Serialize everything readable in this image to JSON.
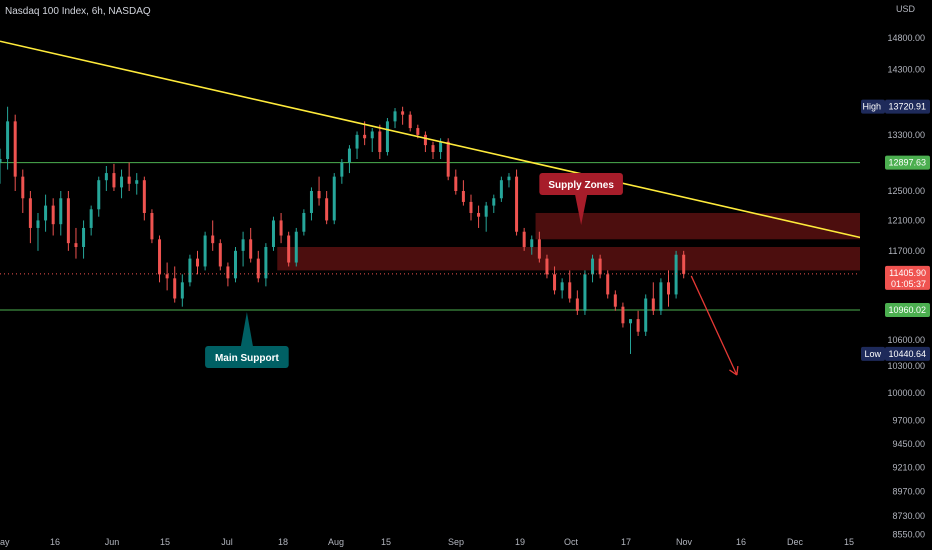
{
  "chart_data": {
    "type": "candlestick",
    "title": "Nasdaq 100 Index, 6h, NASDAQ",
    "currency": "USD",
    "y_axis": {
      "ticks": [
        8550.0,
        8730.0,
        8970.0,
        9210.0,
        9450.0,
        9700.0,
        10000.0,
        10300.0,
        10600.0,
        10960.0,
        11405.9,
        11700.0,
        12100.0,
        12500.0,
        12897.63,
        13300.0,
        13720.91,
        14300.0,
        14800.0
      ],
      "range": [
        8500,
        15100
      ],
      "scale": "log"
    },
    "x_axis": {
      "ticks": [
        "ay",
        "16",
        "Jun",
        "15",
        "Jul",
        "18",
        "Aug",
        "15",
        "Sep",
        "19",
        "Oct",
        "17",
        "Nov",
        "16",
        "Dec",
        "15"
      ],
      "range": [
        "2022-05-01",
        "2022-12-20"
      ]
    },
    "key_prices": {
      "high_label": "High",
      "high_value": "13720.91",
      "resistance_value": "12897.63",
      "current_value": "11405.90",
      "countdown": "01:05:37",
      "support_value": "10960.02",
      "low_label": "Low",
      "low_value": "10440.64"
    },
    "candles": [
      {
        "d": "2022-05-01",
        "o": 12900,
        "h": 13100,
        "l": 12600,
        "c": 12950
      },
      {
        "d": "2022-05-03",
        "o": 12950,
        "h": 13720,
        "l": 12800,
        "c": 13500
      },
      {
        "d": "2022-05-05",
        "o": 13500,
        "h": 13600,
        "l": 12500,
        "c": 12700
      },
      {
        "d": "2022-05-07",
        "o": 12700,
        "h": 12800,
        "l": 12200,
        "c": 12400
      },
      {
        "d": "2022-05-09",
        "o": 12400,
        "h": 12500,
        "l": 11800,
        "c": 12000
      },
      {
        "d": "2022-05-11",
        "o": 12000,
        "h": 12200,
        "l": 11700,
        "c": 12100
      },
      {
        "d": "2022-05-13",
        "o": 12100,
        "h": 12450,
        "l": 11950,
        "c": 12300
      },
      {
        "d": "2022-05-15",
        "o": 12300,
        "h": 12400,
        "l": 11900,
        "c": 12050
      },
      {
        "d": "2022-05-17",
        "o": 12050,
        "h": 12500,
        "l": 11900,
        "c": 12400
      },
      {
        "d": "2022-05-19",
        "o": 12400,
        "h": 12500,
        "l": 11700,
        "c": 11800
      },
      {
        "d": "2022-05-21",
        "o": 11800,
        "h": 12000,
        "l": 11600,
        "c": 11750
      },
      {
        "d": "2022-05-23",
        "o": 11750,
        "h": 12100,
        "l": 11600,
        "c": 12000
      },
      {
        "d": "2022-05-25",
        "o": 12000,
        "h": 12300,
        "l": 11900,
        "c": 12250
      },
      {
        "d": "2022-05-27",
        "o": 12250,
        "h": 12700,
        "l": 12150,
        "c": 12650
      },
      {
        "d": "2022-05-29",
        "o": 12650,
        "h": 12850,
        "l": 12500,
        "c": 12750
      },
      {
        "d": "2022-05-31",
        "o": 12750,
        "h": 12880,
        "l": 12500,
        "c": 12550
      },
      {
        "d": "2022-06-02",
        "o": 12550,
        "h": 12800,
        "l": 12400,
        "c": 12700
      },
      {
        "d": "2022-06-04",
        "o": 12700,
        "h": 12900,
        "l": 12500,
        "c": 12600
      },
      {
        "d": "2022-06-06",
        "o": 12600,
        "h": 12750,
        "l": 12450,
        "c": 12650
      },
      {
        "d": "2022-06-08",
        "o": 12650,
        "h": 12700,
        "l": 12100,
        "c": 12200
      },
      {
        "d": "2022-06-10",
        "o": 12200,
        "h": 12250,
        "l": 11800,
        "c": 11850
      },
      {
        "d": "2022-06-12",
        "o": 11850,
        "h": 11900,
        "l": 11300,
        "c": 11400
      },
      {
        "d": "2022-06-14",
        "o": 11400,
        "h": 11550,
        "l": 11200,
        "c": 11350
      },
      {
        "d": "2022-06-16",
        "o": 11350,
        "h": 11500,
        "l": 11050,
        "c": 11100
      },
      {
        "d": "2022-06-18",
        "o": 11100,
        "h": 11400,
        "l": 11000,
        "c": 11300
      },
      {
        "d": "2022-06-20",
        "o": 11300,
        "h": 11650,
        "l": 11250,
        "c": 11600
      },
      {
        "d": "2022-06-22",
        "o": 11600,
        "h": 11700,
        "l": 11400,
        "c": 11500
      },
      {
        "d": "2022-06-24",
        "o": 11500,
        "h": 11950,
        "l": 11450,
        "c": 11900
      },
      {
        "d": "2022-06-26",
        "o": 11900,
        "h": 12100,
        "l": 11700,
        "c": 11800
      },
      {
        "d": "2022-06-28",
        "o": 11800,
        "h": 11850,
        "l": 11450,
        "c": 11500
      },
      {
        "d": "2022-06-30",
        "o": 11500,
        "h": 11550,
        "l": 11250,
        "c": 11350
      },
      {
        "d": "2022-07-02",
        "o": 11350,
        "h": 11750,
        "l": 11300,
        "c": 11700
      },
      {
        "d": "2022-07-04",
        "o": 11700,
        "h": 11950,
        "l": 11500,
        "c": 11850
      },
      {
        "d": "2022-07-06",
        "o": 11850,
        "h": 12000,
        "l": 11550,
        "c": 11600
      },
      {
        "d": "2022-07-08",
        "o": 11600,
        "h": 11700,
        "l": 11300,
        "c": 11350
      },
      {
        "d": "2022-07-10",
        "o": 11350,
        "h": 11800,
        "l": 11250,
        "c": 11750
      },
      {
        "d": "2022-07-12",
        "o": 11750,
        "h": 12150,
        "l": 11700,
        "c": 12100
      },
      {
        "d": "2022-07-14",
        "o": 12100,
        "h": 12200,
        "l": 11800,
        "c": 11900
      },
      {
        "d": "2022-07-16",
        "o": 11900,
        "h": 11950,
        "l": 11500,
        "c": 11550
      },
      {
        "d": "2022-07-18",
        "o": 11550,
        "h": 12000,
        "l": 11500,
        "c": 11950
      },
      {
        "d": "2022-07-20",
        "o": 11950,
        "h": 12250,
        "l": 11900,
        "c": 12200
      },
      {
        "d": "2022-07-22",
        "o": 12200,
        "h": 12550,
        "l": 12100,
        "c": 12500
      },
      {
        "d": "2022-07-24",
        "o": 12500,
        "h": 12700,
        "l": 12300,
        "c": 12400
      },
      {
        "d": "2022-07-26",
        "o": 12400,
        "h": 12500,
        "l": 12050,
        "c": 12100
      },
      {
        "d": "2022-07-28",
        "o": 12100,
        "h": 12750,
        "l": 12050,
        "c": 12700
      },
      {
        "d": "2022-07-30",
        "o": 12700,
        "h": 12950,
        "l": 12600,
        "c": 12900
      },
      {
        "d": "2022-08-01",
        "o": 12900,
        "h": 13150,
        "l": 12750,
        "c": 13100
      },
      {
        "d": "2022-08-03",
        "o": 13100,
        "h": 13350,
        "l": 12950,
        "c": 13300
      },
      {
        "d": "2022-08-05",
        "o": 13300,
        "h": 13500,
        "l": 13150,
        "c": 13250
      },
      {
        "d": "2022-08-07",
        "o": 13250,
        "h": 13400,
        "l": 13050,
        "c": 13350
      },
      {
        "d": "2022-08-09",
        "o": 13350,
        "h": 13450,
        "l": 12950,
        "c": 13050
      },
      {
        "d": "2022-08-11",
        "o": 13050,
        "h": 13550,
        "l": 13000,
        "c": 13500
      },
      {
        "d": "2022-08-13",
        "o": 13500,
        "h": 13700,
        "l": 13400,
        "c": 13650
      },
      {
        "d": "2022-08-15",
        "o": 13650,
        "h": 13720,
        "l": 13450,
        "c": 13600
      },
      {
        "d": "2022-08-17",
        "o": 13600,
        "h": 13650,
        "l": 13350,
        "c": 13400
      },
      {
        "d": "2022-08-19",
        "o": 13400,
        "h": 13450,
        "l": 13250,
        "c": 13300
      },
      {
        "d": "2022-08-21",
        "o": 13300,
        "h": 13350,
        "l": 13050,
        "c": 13150
      },
      {
        "d": "2022-08-23",
        "o": 13150,
        "h": 13200,
        "l": 12950,
        "c": 13050
      },
      {
        "d": "2022-08-25",
        "o": 13050,
        "h": 13250,
        "l": 12950,
        "c": 13200
      },
      {
        "d": "2022-08-27",
        "o": 13200,
        "h": 13250,
        "l": 12650,
        "c": 12700
      },
      {
        "d": "2022-08-29",
        "o": 12700,
        "h": 12800,
        "l": 12450,
        "c": 12500
      },
      {
        "d": "2022-08-31",
        "o": 12500,
        "h": 12650,
        "l": 12300,
        "c": 12350
      },
      {
        "d": "2022-09-02",
        "o": 12350,
        "h": 12450,
        "l": 12100,
        "c": 12200
      },
      {
        "d": "2022-09-04",
        "o": 12200,
        "h": 12300,
        "l": 12000,
        "c": 12150
      },
      {
        "d": "2022-09-06",
        "o": 12150,
        "h": 12350,
        "l": 11950,
        "c": 12300
      },
      {
        "d": "2022-09-08",
        "o": 12300,
        "h": 12450,
        "l": 12200,
        "c": 12400
      },
      {
        "d": "2022-09-10",
        "o": 12400,
        "h": 12700,
        "l": 12350,
        "c": 12650
      },
      {
        "d": "2022-09-12",
        "o": 12650,
        "h": 12750,
        "l": 12550,
        "c": 12700
      },
      {
        "d": "2022-09-14",
        "o": 12700,
        "h": 12800,
        "l": 11900,
        "c": 11950
      },
      {
        "d": "2022-09-16",
        "o": 11950,
        "h": 12000,
        "l": 11700,
        "c": 11750
      },
      {
        "d": "2022-09-18",
        "o": 11750,
        "h": 11900,
        "l": 11650,
        "c": 11850
      },
      {
        "d": "2022-09-20",
        "o": 11850,
        "h": 11950,
        "l": 11550,
        "c": 11600
      },
      {
        "d": "2022-09-22",
        "o": 11600,
        "h": 11650,
        "l": 11350,
        "c": 11400
      },
      {
        "d": "2022-09-24",
        "o": 11400,
        "h": 11500,
        "l": 11150,
        "c": 11200
      },
      {
        "d": "2022-09-26",
        "o": 11200,
        "h": 11350,
        "l": 11100,
        "c": 11300
      },
      {
        "d": "2022-09-28",
        "o": 11300,
        "h": 11450,
        "l": 11050,
        "c": 11100
      },
      {
        "d": "2022-09-30",
        "o": 11100,
        "h": 11200,
        "l": 10900,
        "c": 10950
      },
      {
        "d": "2022-10-02",
        "o": 10950,
        "h": 11450,
        "l": 10900,
        "c": 11400
      },
      {
        "d": "2022-10-04",
        "o": 11400,
        "h": 11650,
        "l": 11300,
        "c": 11600
      },
      {
        "d": "2022-10-06",
        "o": 11600,
        "h": 11650,
        "l": 11350,
        "c": 11400
      },
      {
        "d": "2022-10-08",
        "o": 11400,
        "h": 11450,
        "l": 11100,
        "c": 11150
      },
      {
        "d": "2022-10-10",
        "o": 11150,
        "h": 11200,
        "l": 10950,
        "c": 11000
      },
      {
        "d": "2022-10-12",
        "o": 11000,
        "h": 11050,
        "l": 10750,
        "c": 10800
      },
      {
        "d": "2022-10-14",
        "o": 10800,
        "h": 10850,
        "l": 10440,
        "c": 10850
      },
      {
        "d": "2022-10-16",
        "o": 10850,
        "h": 10950,
        "l": 10650,
        "c": 10700
      },
      {
        "d": "2022-10-18",
        "o": 10700,
        "h": 11150,
        "l": 10650,
        "c": 11100
      },
      {
        "d": "2022-10-20",
        "o": 11100,
        "h": 11300,
        "l": 10900,
        "c": 10950
      },
      {
        "d": "2022-10-22",
        "o": 10950,
        "h": 11350,
        "l": 10900,
        "c": 11300
      },
      {
        "d": "2022-10-24",
        "o": 11300,
        "h": 11450,
        "l": 11000,
        "c": 11150
      },
      {
        "d": "2022-10-26",
        "o": 11150,
        "h": 11700,
        "l": 11100,
        "c": 11650
      },
      {
        "d": "2022-10-28",
        "o": 11650,
        "h": 11700,
        "l": 11350,
        "c": 11406
      }
    ],
    "horizontal_lines": [
      {
        "price": 12897.63,
        "color": "#4caf50"
      },
      {
        "price": 10960.02,
        "color": "#4caf50"
      }
    ],
    "trendline": {
      "from": {
        "d": "2022-05-01",
        "p": 14750
      },
      "to": {
        "d": "2022-12-20",
        "p": 11800
      },
      "color": "#ffeb3b"
    },
    "zones": [
      {
        "from": "2022-09-19",
        "to": "2022-12-15",
        "high": 12200,
        "low": 11850,
        "color": "#8b1a1a"
      },
      {
        "from": "2022-07-13",
        "to": "2022-12-20",
        "high": 11750,
        "low": 11450,
        "color": "#8b1a1a"
      }
    ],
    "projection_arrow": {
      "from": {
        "d": "2022-10-30",
        "p": 11380
      },
      "to": {
        "d": "2022-11-11",
        "p": 10200
      },
      "color": "#e53935"
    },
    "annotations": [
      {
        "text": "Supply Zones",
        "d": "2022-10-01",
        "p": 12200,
        "color": "#a71d2a",
        "pointer": "down"
      },
      {
        "text": "Main Support",
        "d": "2022-07-05",
        "p": 10960,
        "color": "#006064",
        "pointer": "up"
      }
    ],
    "colors": {
      "up": "#26a69a",
      "down": "#ef5350",
      "support": "#4caf50",
      "trend": "#ffeb3b",
      "current": "#ef5350",
      "high_low": "#1e2a5a"
    }
  }
}
